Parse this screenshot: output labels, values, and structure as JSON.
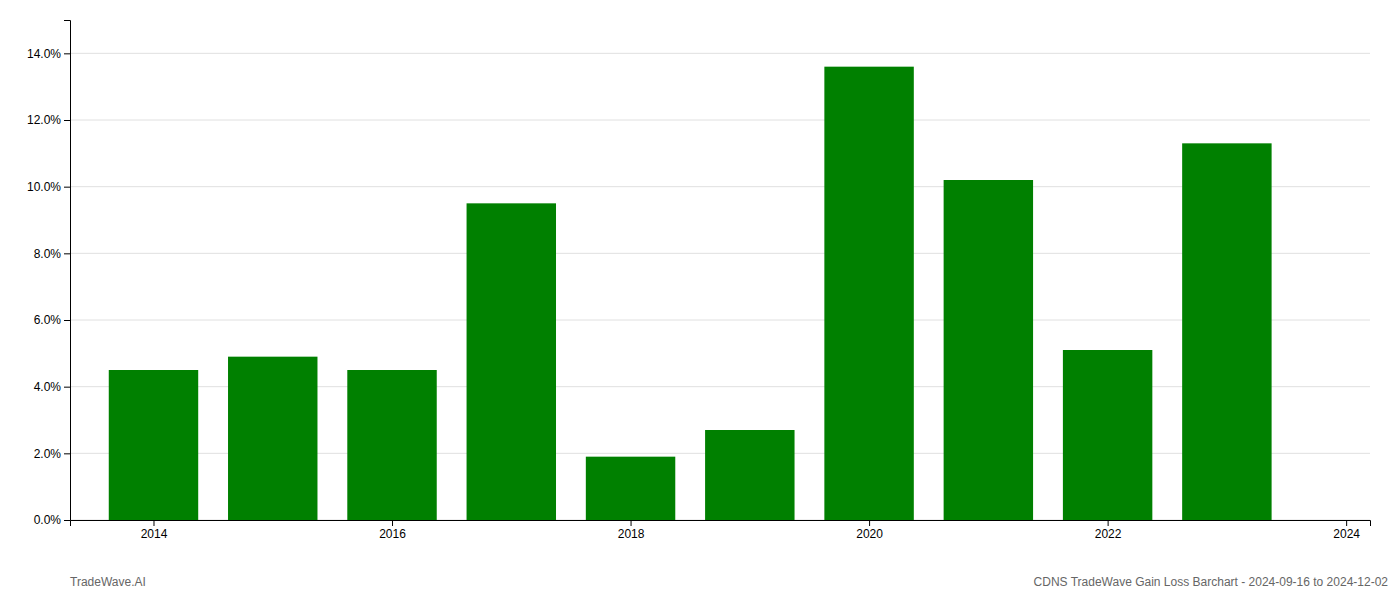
{
  "chart_data": {
    "type": "bar",
    "x": [
      2014,
      2015,
      2016,
      2017,
      2018,
      2019,
      2020,
      2021,
      2022,
      2023
    ],
    "values": [
      0.045,
      0.049,
      0.045,
      0.095,
      0.019,
      0.027,
      0.136,
      0.102,
      0.051,
      0.113
    ],
    "color": "#008000",
    "xlim": [
      2013.3,
      2024.2
    ],
    "xticks": [
      2014,
      2016,
      2018,
      2020,
      2022,
      2024
    ],
    "ylim": [
      0,
      0.15
    ],
    "yticks": [
      {
        "value": 0.0,
        "label": "0.0%"
      },
      {
        "value": 0.02,
        "label": "2.0%"
      },
      {
        "value": 0.04,
        "label": "4.0%"
      },
      {
        "value": 0.06,
        "label": "6.0%"
      },
      {
        "value": 0.08,
        "label": "8.0%"
      },
      {
        "value": 0.1,
        "label": "10.0%"
      },
      {
        "value": 0.12,
        "label": "12.0%"
      },
      {
        "value": 0.14,
        "label": "14.0%"
      }
    ],
    "grid": true,
    "annotations": [
      "TradeWave.AI",
      "CDNS TradeWave Gain Loss Barchart - 2024-09-16 to 2024-12-02"
    ]
  }
}
